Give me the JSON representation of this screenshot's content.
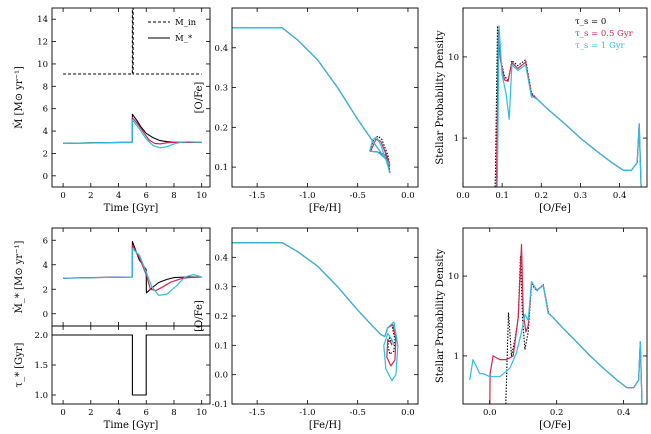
{
  "colors": {
    "black": "#000000",
    "red": "#d6264f",
    "cyan": "#2bbfe6"
  },
  "chart_data": [
    {
      "id": "inflow-sfr-burst",
      "type": "line",
      "xlabel": "Time [Gyr]",
      "ylabel": "Ṁ [M⊙ yr⁻¹]",
      "xlim": [
        -0.8,
        10.6
      ],
      "ylim": [
        -1,
        15
      ],
      "xticks": [
        0,
        2,
        4,
        6,
        8,
        10
      ],
      "yticks": [
        0,
        2,
        4,
        6,
        8,
        10,
        12,
        14
      ],
      "legend": [
        "Ṁ_in",
        "Ṁ_*"
      ],
      "legend_position": "top-right",
      "series": [
        {
          "name": "Ṁ_in",
          "style": "dashed",
          "color": "black",
          "x": [
            0,
            4.99,
            5.0,
            5.0,
            5.05,
            5.05,
            10
          ],
          "y": [
            9.1,
            9.1,
            9.1,
            15,
            15,
            9.1,
            9.1
          ]
        },
        {
          "name": "Ṁ_* (τ_s = 0)",
          "color": "black",
          "x": [
            0,
            2,
            4.99,
            5.0,
            5.3,
            5.6,
            6.0,
            6.5,
            7.0,
            7.5,
            8,
            9,
            10
          ],
          "y": [
            2.9,
            2.95,
            3.0,
            5.5,
            5.0,
            4.4,
            3.8,
            3.4,
            3.15,
            3.05,
            3.0,
            3.0,
            3.0
          ]
        },
        {
          "name": "Ṁ_* (τ_s = 0.5 Gyr)",
          "color": "red",
          "x": [
            0,
            4.99,
            5.0,
            5.4,
            5.8,
            6.2,
            6.6,
            7.0,
            7.5,
            8,
            9,
            10
          ],
          "y": [
            2.9,
            3.0,
            5.2,
            4.6,
            3.9,
            3.2,
            2.9,
            2.85,
            2.95,
            3.0,
            3.0,
            3.0
          ]
        },
        {
          "name": "Ṁ_* (τ_s = 1 Gyr)",
          "color": "cyan",
          "x": [
            0,
            4.99,
            5.0,
            5.5,
            6.0,
            6.5,
            7.0,
            7.5,
            8,
            8.5,
            9,
            10
          ],
          "y": [
            2.9,
            3.0,
            5.0,
            4.2,
            3.3,
            2.7,
            2.5,
            2.6,
            2.85,
            3.0,
            3.05,
            3.0
          ]
        }
      ]
    },
    {
      "id": "ofe-feh-burst",
      "type": "line",
      "xlabel": "[Fe/H]",
      "ylabel": "[O/Fe]",
      "xlim": [
        -1.75,
        0.1
      ],
      "ylim": [
        0.05,
        0.5
      ],
      "xticks": [
        -1.5,
        -1.0,
        -0.5,
        0.0
      ],
      "yticks": [
        0.1,
        0.2,
        0.3,
        0.4
      ],
      "series": [
        {
          "name": "τ_s = 0",
          "color": "black",
          "style": "dotted",
          "x": [
            -1.75,
            -1.25,
            -1.1,
            -0.9,
            -0.7,
            -0.5,
            -0.35,
            -0.27,
            -0.22,
            -0.19,
            -0.18,
            -0.2,
            -0.26,
            -0.3,
            -0.34,
            -0.38,
            -0.3,
            -0.22,
            -0.19,
            -0.18,
            -0.18
          ],
          "y": [
            0.45,
            0.45,
            0.42,
            0.37,
            0.3,
            0.22,
            0.165,
            0.137,
            0.12,
            0.11,
            0.105,
            0.13,
            0.17,
            0.178,
            0.17,
            0.14,
            0.138,
            0.13,
            0.11,
            0.09,
            0.085
          ]
        },
        {
          "name": "τ_s = 0.5 Gyr",
          "color": "red",
          "x": [
            -1.75,
            -1.25,
            -1.1,
            -0.9,
            -0.7,
            -0.5,
            -0.35,
            -0.27,
            -0.22,
            -0.19,
            -0.18,
            -0.21,
            -0.27,
            -0.32,
            -0.37,
            -0.3,
            -0.22,
            -0.19,
            -0.18
          ],
          "y": [
            0.45,
            0.45,
            0.42,
            0.37,
            0.3,
            0.22,
            0.165,
            0.137,
            0.12,
            0.11,
            0.105,
            0.128,
            0.165,
            0.17,
            0.14,
            0.138,
            0.125,
            0.1,
            0.085
          ]
        },
        {
          "name": "τ_s = 1 Gyr",
          "color": "cyan",
          "x": [
            -1.75,
            -1.25,
            -1.1,
            -0.9,
            -0.7,
            -0.5,
            -0.35,
            -0.27,
            -0.22,
            -0.19,
            -0.18,
            -0.22,
            -0.27,
            -0.31,
            -0.35,
            -0.38,
            -0.3,
            -0.22,
            -0.19,
            -0.18
          ],
          "y": [
            0.45,
            0.45,
            0.42,
            0.37,
            0.3,
            0.22,
            0.165,
            0.137,
            0.12,
            0.11,
            0.105,
            0.12,
            0.155,
            0.175,
            0.17,
            0.14,
            0.138,
            0.12,
            0.095,
            0.085
          ]
        }
      ]
    },
    {
      "id": "ofe-mdf-burst",
      "type": "line",
      "log_y": true,
      "xlabel": "[O/Fe]",
      "ylabel": "Stellar Probability Density",
      "xlim": [
        0.0,
        0.47
      ],
      "ylim": [
        0.25,
        40
      ],
      "xticks": [
        0.0,
        0.1,
        0.2,
        0.3,
        0.4
      ],
      "yticks": [
        1,
        10
      ],
      "legend": [
        "τ_s = 0",
        "τ_s = 0.5 Gyr",
        "τ_s = 1 Gyr"
      ],
      "legend_position": "top-right",
      "series": [
        {
          "name": "τ_s = 0",
          "color": "black",
          "style": "dotted",
          "x": [
            0.082,
            0.083,
            0.088,
            0.095,
            0.105,
            0.115,
            0.125,
            0.14,
            0.16,
            0.175,
            0.18,
            0.19,
            0.22,
            0.26,
            0.3,
            0.34,
            0.38,
            0.41,
            0.43,
            0.445,
            0.45,
            0.455
          ],
          "y": [
            0.25,
            0.4,
            24,
            10,
            6,
            5,
            9,
            7.8,
            9.2,
            3.6,
            3.4,
            3.0,
            2.2,
            1.5,
            1.0,
            0.7,
            0.5,
            0.4,
            0.4,
            0.5,
            1.5,
            0.25
          ]
        },
        {
          "name": "τ_s = 0.5 Gyr",
          "color": "red",
          "x": [
            0.085,
            0.086,
            0.09,
            0.096,
            0.106,
            0.115,
            0.125,
            0.14,
            0.16,
            0.175,
            0.18,
            0.19,
            0.22,
            0.26,
            0.3,
            0.34,
            0.38,
            0.41,
            0.43,
            0.445,
            0.45,
            0.455
          ],
          "y": [
            0.25,
            0.4,
            20,
            9,
            5.2,
            5.0,
            8.5,
            7.2,
            8.6,
            3.4,
            3.3,
            3.0,
            2.2,
            1.5,
            1.0,
            0.7,
            0.5,
            0.4,
            0.4,
            0.5,
            1.5,
            0.25
          ]
        },
        {
          "name": "τ_s = 1 Gyr",
          "color": "cyan",
          "x": [
            0.087,
            0.088,
            0.092,
            0.1,
            0.11,
            0.118,
            0.125,
            0.14,
            0.16,
            0.175,
            0.18,
            0.19,
            0.22,
            0.26,
            0.3,
            0.34,
            0.38,
            0.41,
            0.43,
            0.445,
            0.45,
            0.455
          ],
          "y": [
            0.25,
            0.4,
            24,
            6,
            3.5,
            1.7,
            8.0,
            6.8,
            8.0,
            3.2,
            3.2,
            3.0,
            2.2,
            1.5,
            1.0,
            0.7,
            0.5,
            0.4,
            0.4,
            0.5,
            1.5,
            0.25
          ]
        }
      ]
    },
    {
      "id": "sfr-sfe-dip",
      "type": "line",
      "xlabel": "",
      "ylabel": "Ṁ_* [M⊙ yr⁻¹]",
      "xlim": [
        -0.8,
        10.6
      ],
      "ylim": [
        -1,
        7
      ],
      "xticks": [
        0,
        2,
        4,
        6,
        8,
        10
      ],
      "yticks": [
        0,
        2,
        4,
        6
      ],
      "series": [
        {
          "name": "τ_s = 0",
          "color": "black",
          "x": [
            0,
            2,
            4.99,
            5.0,
            5.5,
            6.0,
            6.01,
            6.4,
            6.9,
            7.5,
            8,
            9,
            10
          ],
          "y": [
            2.9,
            2.95,
            3.0,
            5.9,
            4.4,
            3.6,
            1.7,
            2.1,
            2.55,
            2.8,
            2.95,
            3.0,
            3.0
          ]
        },
        {
          "name": "τ_s = 0.5 Gyr",
          "color": "red",
          "x": [
            0,
            4.99,
            5.0,
            5.5,
            6.0,
            6.3,
            6.7,
            7.2,
            7.8,
            8.5,
            9,
            10
          ],
          "y": [
            2.9,
            3.0,
            5.6,
            4.6,
            3.2,
            2.0,
            1.9,
            2.2,
            2.6,
            2.85,
            2.95,
            3.0
          ]
        },
        {
          "name": "τ_s = 1 Gyr",
          "color": "cyan",
          "x": [
            0,
            4.99,
            5.0,
            5.5,
            6.0,
            6.4,
            6.9,
            7.5,
            8.2,
            8.8,
            9.4,
            10
          ],
          "y": [
            2.9,
            3.0,
            5.3,
            4.8,
            3.4,
            2.2,
            1.5,
            1.6,
            2.3,
            3.0,
            3.2,
            3.0
          ]
        }
      ]
    },
    {
      "id": "tau-star",
      "type": "line",
      "xlabel": "Time [Gyr]",
      "ylabel": "τ_* [Gyr]",
      "xlim": [
        -0.8,
        10.6
      ],
      "ylim": [
        0.85,
        2.15
      ],
      "xticks": [
        0,
        2,
        4,
        6,
        8,
        10
      ],
      "yticks": [
        1.0,
        1.5,
        2.0
      ],
      "series": [
        {
          "name": "τ_*",
          "color": "black",
          "x": [
            -0.8,
            5.0,
            5.0,
            6.0,
            6.0,
            10.6
          ],
          "y": [
            2.0,
            2.0,
            1.0,
            1.0,
            2.0,
            2.0
          ]
        }
      ]
    },
    {
      "id": "ofe-feh-dip",
      "type": "line",
      "xlabel": "[Fe/H]",
      "ylabel": "[O/Fe]",
      "xlim": [
        -1.75,
        0.1
      ],
      "ylim": [
        -0.1,
        0.5
      ],
      "xticks": [
        -1.5,
        -1.0,
        -0.5,
        0.0
      ],
      "yticks": [
        -0.1,
        0.0,
        0.1,
        0.2,
        0.3,
        0.4
      ],
      "series": [
        {
          "name": "τ_s = 0",
          "color": "black",
          "style": "dotted",
          "x": [
            -1.75,
            -1.25,
            -1.1,
            -0.9,
            -0.7,
            -0.5,
            -0.35,
            -0.27,
            -0.23,
            -0.2,
            -0.16,
            -0.13,
            -0.14,
            -0.18,
            -0.2,
            -0.18,
            -0.16
          ],
          "y": [
            0.45,
            0.45,
            0.42,
            0.37,
            0.3,
            0.22,
            0.165,
            0.137,
            0.13,
            0.16,
            0.17,
            0.12,
            0.08,
            0.07,
            0.1,
            0.13,
            0.1
          ]
        },
        {
          "name": "τ_s = 0.5 Gyr",
          "color": "red",
          "x": [
            -1.75,
            -1.25,
            -1.1,
            -0.9,
            -0.7,
            -0.5,
            -0.35,
            -0.27,
            -0.23,
            -0.2,
            -0.15,
            -0.12,
            -0.13,
            -0.17,
            -0.21,
            -0.2,
            -0.17,
            -0.16
          ],
          "y": [
            0.45,
            0.45,
            0.42,
            0.37,
            0.3,
            0.22,
            0.165,
            0.137,
            0.13,
            0.16,
            0.17,
            0.12,
            0.05,
            0.03,
            0.06,
            0.12,
            0.11,
            0.1
          ]
        },
        {
          "name": "τ_s = 1 Gyr",
          "color": "cyan",
          "x": [
            -1.75,
            -1.25,
            -1.1,
            -0.9,
            -0.7,
            -0.5,
            -0.35,
            -0.27,
            -0.23,
            -0.2,
            -0.14,
            -0.1,
            -0.12,
            -0.16,
            -0.22,
            -0.24,
            -0.2,
            -0.16,
            -0.14
          ],
          "y": [
            0.45,
            0.45,
            0.42,
            0.37,
            0.3,
            0.22,
            0.165,
            0.137,
            0.13,
            0.16,
            0.18,
            0.1,
            0.0,
            -0.02,
            0.02,
            0.1,
            0.14,
            0.12,
            0.1
          ]
        }
      ]
    },
    {
      "id": "ofe-mdf-dip",
      "type": "line",
      "log_y": true,
      "xlabel": "[O/Fe]",
      "ylabel": "Stellar Probability Density",
      "xlim": [
        -0.08,
        0.47
      ],
      "ylim": [
        0.25,
        40
      ],
      "xticks": [
        0.0,
        0.2,
        0.4
      ],
      "yticks": [
        1,
        10
      ],
      "series": [
        {
          "name": "τ_s = 0",
          "color": "black",
          "style": "dotted",
          "x": [
            0.048,
            0.05,
            0.056,
            0.065,
            0.075,
            0.085,
            0.092,
            0.098,
            0.105,
            0.115,
            0.125,
            0.14,
            0.16,
            0.175,
            0.18,
            0.19,
            0.22,
            0.26,
            0.3,
            0.34,
            0.38,
            0.41,
            0.43,
            0.445,
            0.45,
            0.455
          ],
          "y": [
            0.25,
            0.5,
            3.5,
            1.0,
            1.6,
            3.0,
            18,
            3.0,
            1.2,
            2.0,
            8.0,
            6.5,
            7.8,
            3.6,
            3.3,
            3.0,
            2.2,
            1.5,
            1.0,
            0.7,
            0.5,
            0.4,
            0.4,
            0.5,
            1.5,
            0.25
          ]
        },
        {
          "name": "τ_s = 0.5 Gyr",
          "color": "red",
          "x": [
            0.0,
            0.001,
            0.01,
            0.03,
            0.05,
            0.07,
            0.085,
            0.095,
            0.1,
            0.108,
            0.115,
            0.125,
            0.14,
            0.16,
            0.175,
            0.18,
            0.19,
            0.22,
            0.26,
            0.3,
            0.34,
            0.38,
            0.41,
            0.43,
            0.445,
            0.45,
            0.455
          ],
          "y": [
            0.25,
            0.6,
            1.0,
            0.9,
            0.9,
            1.0,
            3.0,
            25,
            3.5,
            2.0,
            2.4,
            8.5,
            6.7,
            7.6,
            3.4,
            3.3,
            3.0,
            2.2,
            1.5,
            1.0,
            0.7,
            0.5,
            0.4,
            0.4,
            0.5,
            1.5,
            0.25
          ]
        },
        {
          "name": "τ_s = 1 Gyr",
          "color": "cyan",
          "x": [
            -0.06,
            -0.05,
            -0.03,
            -0.02,
            0.0,
            0.03,
            0.06,
            0.08,
            0.095,
            0.105,
            0.115,
            0.125,
            0.14,
            0.16,
            0.175,
            0.18,
            0.19,
            0.22,
            0.26,
            0.3,
            0.34,
            0.38,
            0.41,
            0.43,
            0.445,
            0.45,
            0.455
          ],
          "y": [
            0.5,
            0.9,
            0.6,
            0.6,
            0.55,
            0.55,
            0.7,
            1.1,
            2.0,
            3.3,
            2.8,
            8.5,
            6.6,
            7.6,
            3.4,
            3.3,
            3.0,
            2.2,
            1.5,
            1.0,
            0.7,
            0.5,
            0.4,
            0.4,
            0.5,
            1.5,
            0.25
          ]
        }
      ]
    }
  ]
}
